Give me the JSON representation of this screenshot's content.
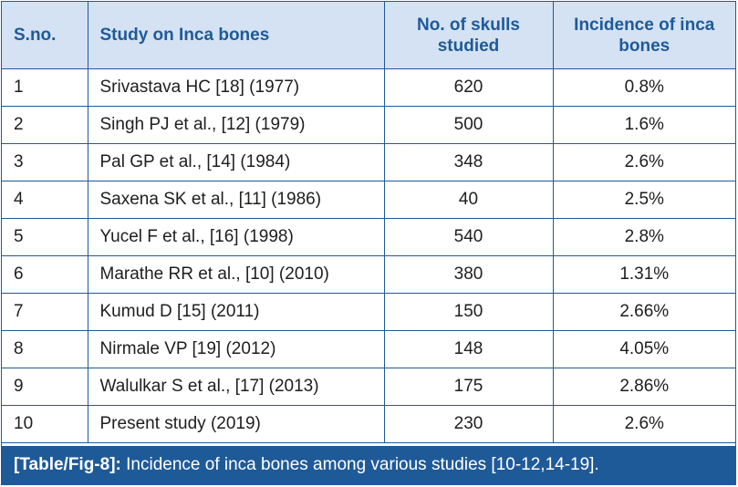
{
  "table": {
    "headers": [
      "S.no.",
      "Study on Inca bones",
      "No. of skulls studied",
      "Incidence of inca bones"
    ],
    "rows": [
      [
        "1",
        "Srivastava HC [18] (1977)",
        "620",
        "0.8%"
      ],
      [
        "2",
        "Singh PJ et al., [12] (1979)",
        "500",
        "1.6%"
      ],
      [
        "3",
        "Pal GP et al., [14] (1984)",
        "348",
        "2.6%"
      ],
      [
        "4",
        "Saxena SK et al., [11] (1986)",
        "40",
        "2.5%"
      ],
      [
        "5",
        "Yucel F et al., [16] (1998)",
        "540",
        "2.8%"
      ],
      [
        "6",
        "Marathe RR et al., [10] (2010)",
        "380",
        "1.31%"
      ],
      [
        "7",
        "Kumud D [15] (2011)",
        "150",
        "2.66%"
      ],
      [
        "8",
        "Nirmale VP [19] (2012)",
        "148",
        "4.05%"
      ],
      [
        "9",
        "Walulkar S et al., [17] (2013)",
        "175",
        "2.86%"
      ],
      [
        "10",
        "Present study (2019)",
        "230",
        "2.6%"
      ]
    ]
  },
  "caption": {
    "label": "[Table/Fig-8]:",
    "text": " Incidence of inca bones among various studies [10-12,14-19]."
  },
  "colors": {
    "accent": "#1f5a98",
    "header_bg": "#d4e2f3",
    "text": "#1e1e1e"
  }
}
